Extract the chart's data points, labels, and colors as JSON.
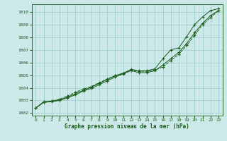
{
  "xlabel": "Graphe pression niveau de la mer (hPa)",
  "xlim": [
    -0.5,
    23.5
  ],
  "ylim": [
    1001.8,
    1010.6
  ],
  "yticks": [
    1002,
    1003,
    1004,
    1005,
    1006,
    1007,
    1008,
    1009,
    1010
  ],
  "xticks": [
    0,
    1,
    2,
    3,
    4,
    5,
    6,
    7,
    8,
    9,
    10,
    11,
    12,
    13,
    14,
    15,
    16,
    17,
    18,
    19,
    20,
    21,
    22,
    23
  ],
  "bg_color": "#cce8e8",
  "grid_color": "#99cccc",
  "line_color": "#1a5c1a",
  "series1": [
    1002.4,
    1002.9,
    1002.95,
    1003.05,
    1003.25,
    1003.55,
    1003.8,
    1004.05,
    1004.35,
    1004.65,
    1004.95,
    1005.15,
    1005.45,
    1005.35,
    1005.35,
    1005.5,
    1006.3,
    1007.0,
    1007.15,
    1008.05,
    1009.0,
    1009.6,
    1010.1,
    1010.25
  ],
  "series2": [
    1002.4,
    1002.85,
    1002.95,
    1003.1,
    1003.35,
    1003.65,
    1003.9,
    1004.1,
    1004.4,
    1004.7,
    1004.95,
    1005.15,
    1005.4,
    1005.3,
    1005.3,
    1005.4,
    1005.65,
    1006.15,
    1006.65,
    1007.35,
    1008.15,
    1009.0,
    1009.55,
    1010.1
  ],
  "series3": [
    1002.4,
    1002.85,
    1002.9,
    1003.0,
    1003.2,
    1003.45,
    1003.75,
    1003.95,
    1004.25,
    1004.55,
    1004.85,
    1005.1,
    1005.35,
    1005.2,
    1005.2,
    1005.35,
    1005.8,
    1006.3,
    1006.8,
    1007.5,
    1008.35,
    1009.1,
    1009.7,
    1010.1
  ]
}
